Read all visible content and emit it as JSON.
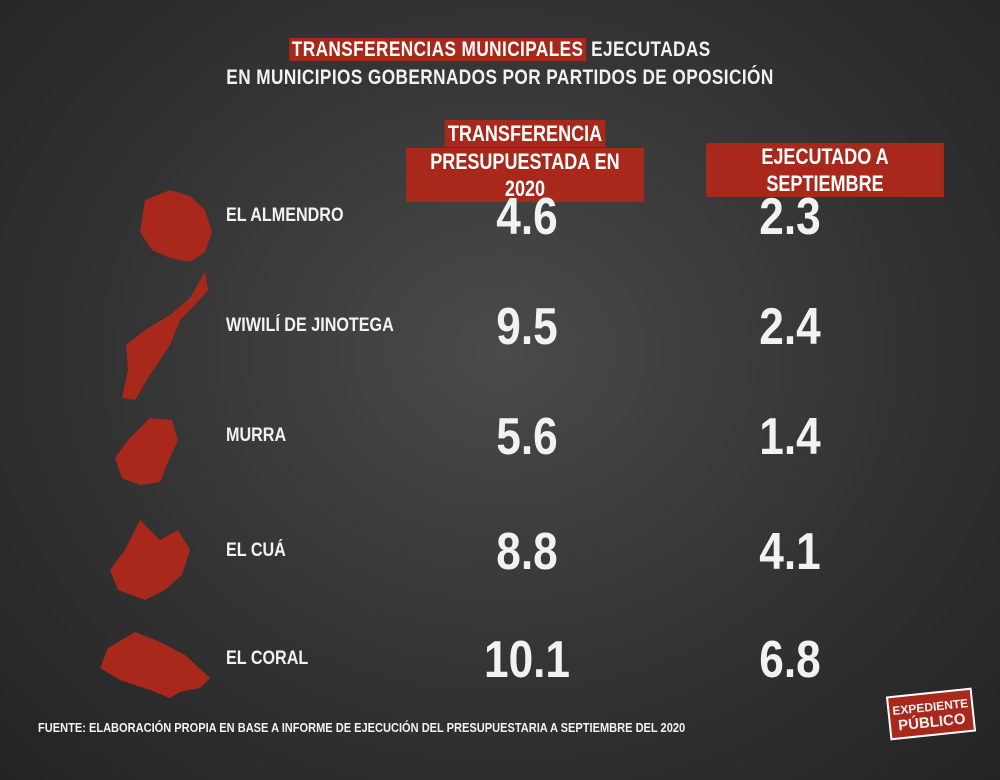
{
  "header": {
    "title_highlight": "TRANSFERENCIAS MUNICIPALES",
    "title_rest": "EJECUTADAS",
    "title_line2": "EN MUNICIPIOS GOBERNADOS POR PARTIDOS DE OPOSICIÓN"
  },
  "columns": [
    {
      "lines": [
        "TRANSFERENCIA",
        "PRESUPUESTADA EN 2020"
      ]
    },
    {
      "lines": [
        "EJECUTADO A SEPTIEMBRE"
      ]
    }
  ],
  "rows": [
    {
      "name": "EL ALMENDRO",
      "budgeted": 4.6,
      "executed": 2.3
    },
    {
      "name": "WIWILÍ DE JINOTEGA",
      "budgeted": 9.5,
      "executed": 2.4
    },
    {
      "name": "MURRA",
      "budgeted": 5.6,
      "executed": 1.4
    },
    {
      "name": "EL CUÁ",
      "budgeted": 8.8,
      "executed": 4.1
    },
    {
      "name": "EL CORAL",
      "budgeted": 10.1,
      "executed": 6.8
    }
  ],
  "source": "FUENTE: ELABORACIÓN PROPIA EN BASE A INFORME DE EJECUCIÓN DEL PRESUPUESTARIA A SEPTIEMBRE DEL 2020",
  "logo": {
    "lines": [
      "EXPEDIENTE",
      "PÚBLICO"
    ]
  }
}
